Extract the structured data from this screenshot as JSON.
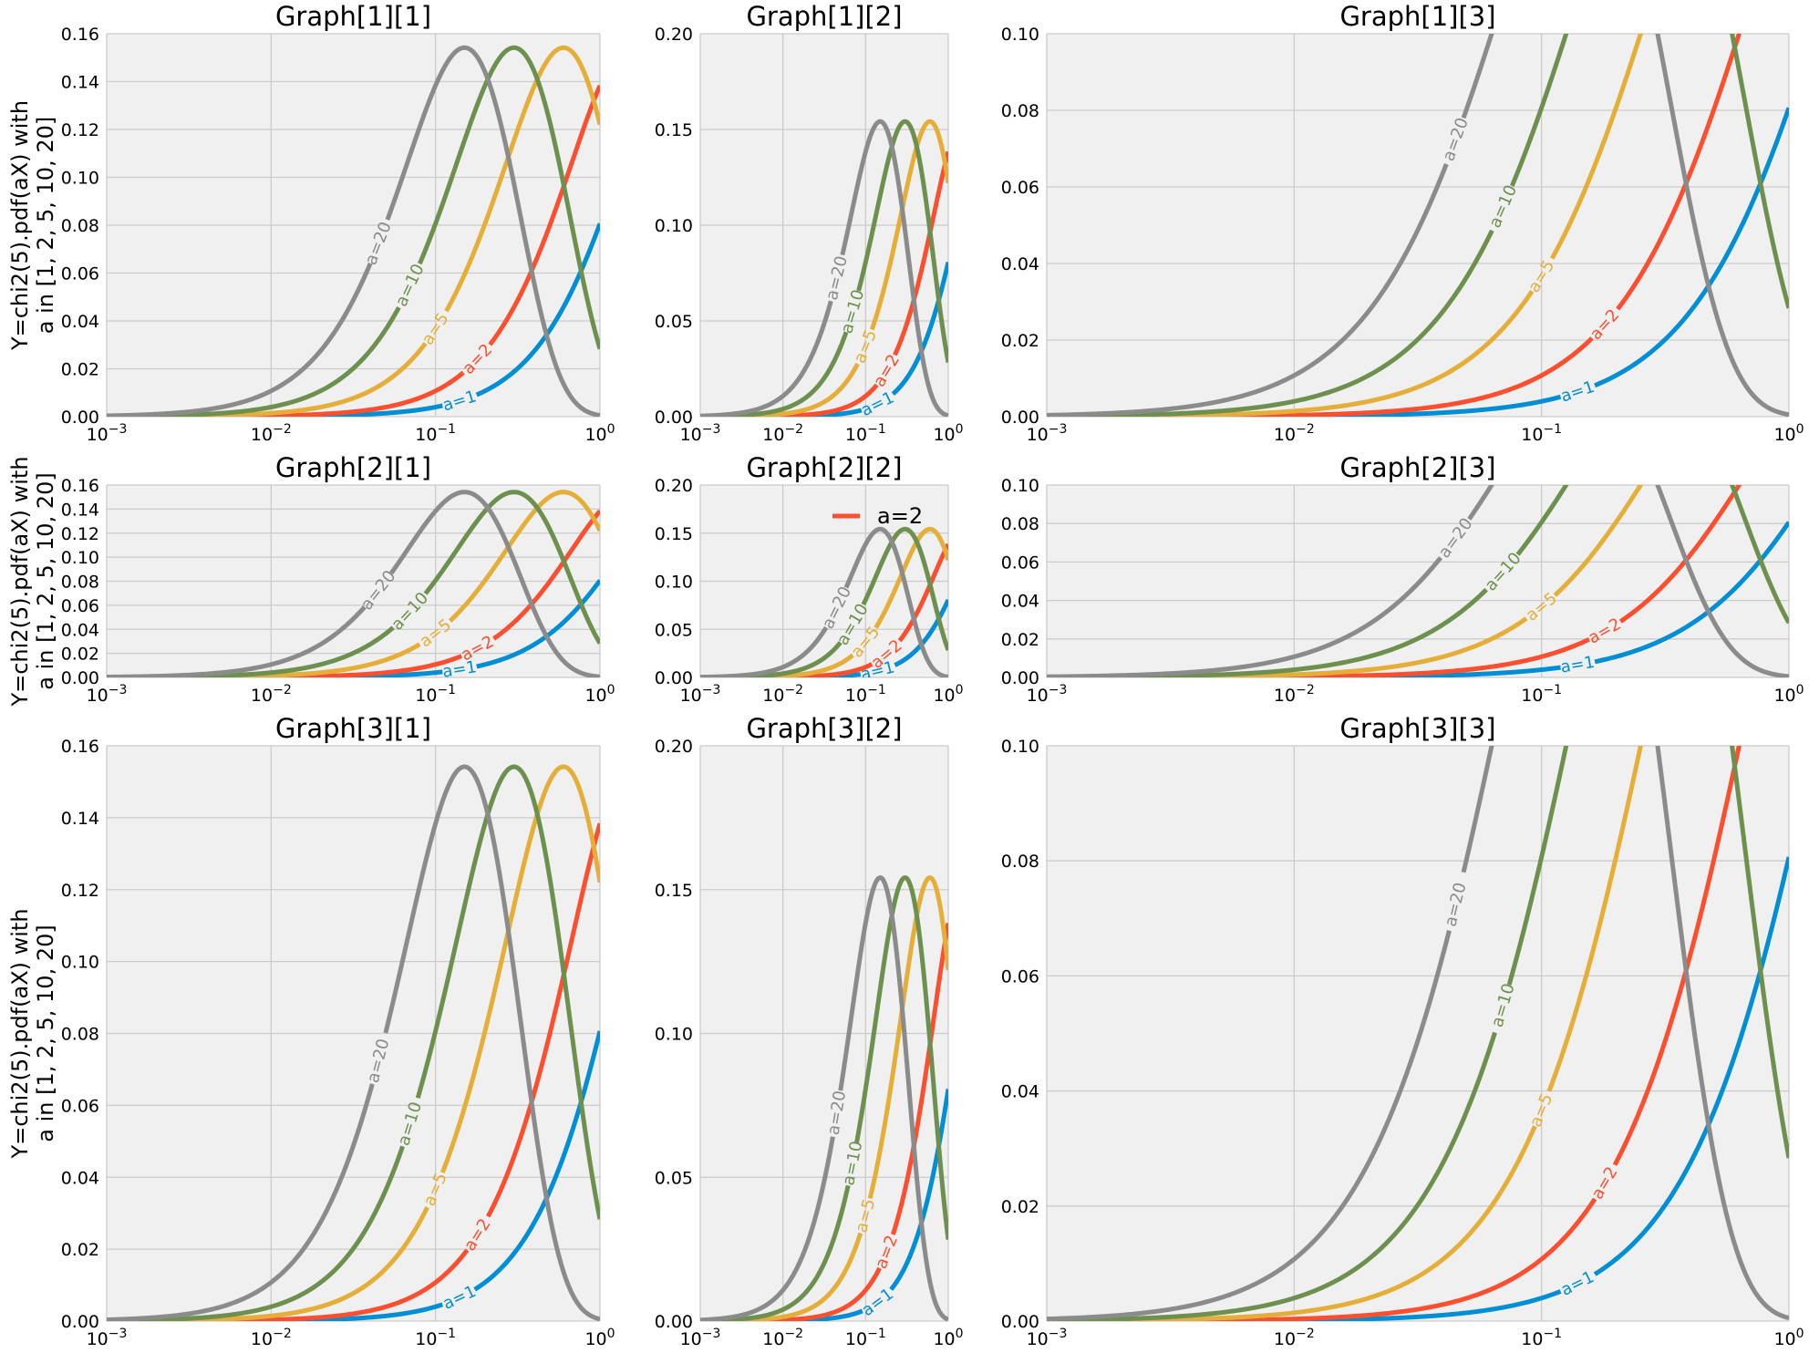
{
  "figure": {
    "ylabel_lines": [
      "Y=chi2(5).pdf(aX) with",
      "a in [1, 2, 5, 10, 20]"
    ],
    "background": "#f0f0f0",
    "grid_color": "#cbcbcb"
  },
  "chart_data": {
    "type": "line",
    "x_scale": "log",
    "xlim": [
      0.001,
      1
    ],
    "x_ticks": [
      0.001,
      0.01,
      0.1,
      1
    ],
    "x_tick_labels": [
      [
        "10",
        "−3"
      ],
      [
        "10",
        "−2"
      ],
      [
        "10",
        "−1"
      ],
      [
        "10",
        "0"
      ]
    ],
    "function": "Y = chi2(5).pdf(a·X)",
    "series": [
      {
        "name": "a=1",
        "a": 1,
        "color": "#008fd5",
        "label_x": 0.14
      },
      {
        "name": "a=2",
        "a": 2,
        "color": "#fc4f30",
        "label_x": 0.18
      },
      {
        "name": "a=5",
        "a": 5,
        "color": "#e5ae38",
        "label_x": 0.1
      },
      {
        "name": "a=10",
        "a": 10,
        "color": "#6d904f",
        "label_x": 0.07
      },
      {
        "name": "a=20",
        "a": 20,
        "color": "#8b8b8b",
        "label_x": 0.045
      }
    ],
    "legend": {
      "entries": [
        "a=2"
      ],
      "color": "#fc4f30",
      "panel": "Graph[2][2]",
      "placement": "top-right"
    },
    "panels": [
      {
        "title": "Graph[1][1]",
        "ylim": [
          0,
          0.16
        ],
        "y_ticks": [
          "0.00",
          "0.02",
          "0.04",
          "0.06",
          "0.08",
          "0.10",
          "0.12",
          "0.14",
          "0.16"
        ],
        "show_ylabel": true
      },
      {
        "title": "Graph[1][2]",
        "ylim": [
          0,
          0.2
        ],
        "y_ticks": [
          "0.00",
          "0.05",
          "0.10",
          "0.15",
          "0.20"
        ]
      },
      {
        "title": "Graph[1][3]",
        "ylim": [
          0,
          0.1
        ],
        "y_ticks": [
          "0.00",
          "0.02",
          "0.04",
          "0.06",
          "0.08",
          "0.10"
        ]
      },
      {
        "title": "Graph[2][1]",
        "ylim": [
          0,
          0.16
        ],
        "y_ticks": [
          "0.00",
          "0.02",
          "0.04",
          "0.06",
          "0.08",
          "0.10",
          "0.12",
          "0.14",
          "0.16"
        ],
        "show_ylabel": true
      },
      {
        "title": "Graph[2][2]",
        "ylim": [
          0,
          0.2
        ],
        "y_ticks": [
          "0.00",
          "0.05",
          "0.10",
          "0.15",
          "0.20"
        ],
        "legend": true
      },
      {
        "title": "Graph[2][3]",
        "ylim": [
          0,
          0.1
        ],
        "y_ticks": [
          "0.00",
          "0.02",
          "0.04",
          "0.06",
          "0.08",
          "0.10"
        ]
      },
      {
        "title": "Graph[3][1]",
        "ylim": [
          0,
          0.16
        ],
        "y_ticks": [
          "0.00",
          "0.02",
          "0.04",
          "0.06",
          "0.08",
          "0.10",
          "0.12",
          "0.14",
          "0.16"
        ],
        "show_ylabel": true
      },
      {
        "title": "Graph[3][2]",
        "ylim": [
          0,
          0.2
        ],
        "y_ticks": [
          "0.00",
          "0.05",
          "0.10",
          "0.15",
          "0.20"
        ]
      },
      {
        "title": "Graph[3][3]",
        "ylim": [
          0,
          0.1
        ],
        "y_ticks": [
          "0.00",
          "0.02",
          "0.04",
          "0.06",
          "0.08",
          "0.10"
        ]
      }
    ]
  }
}
